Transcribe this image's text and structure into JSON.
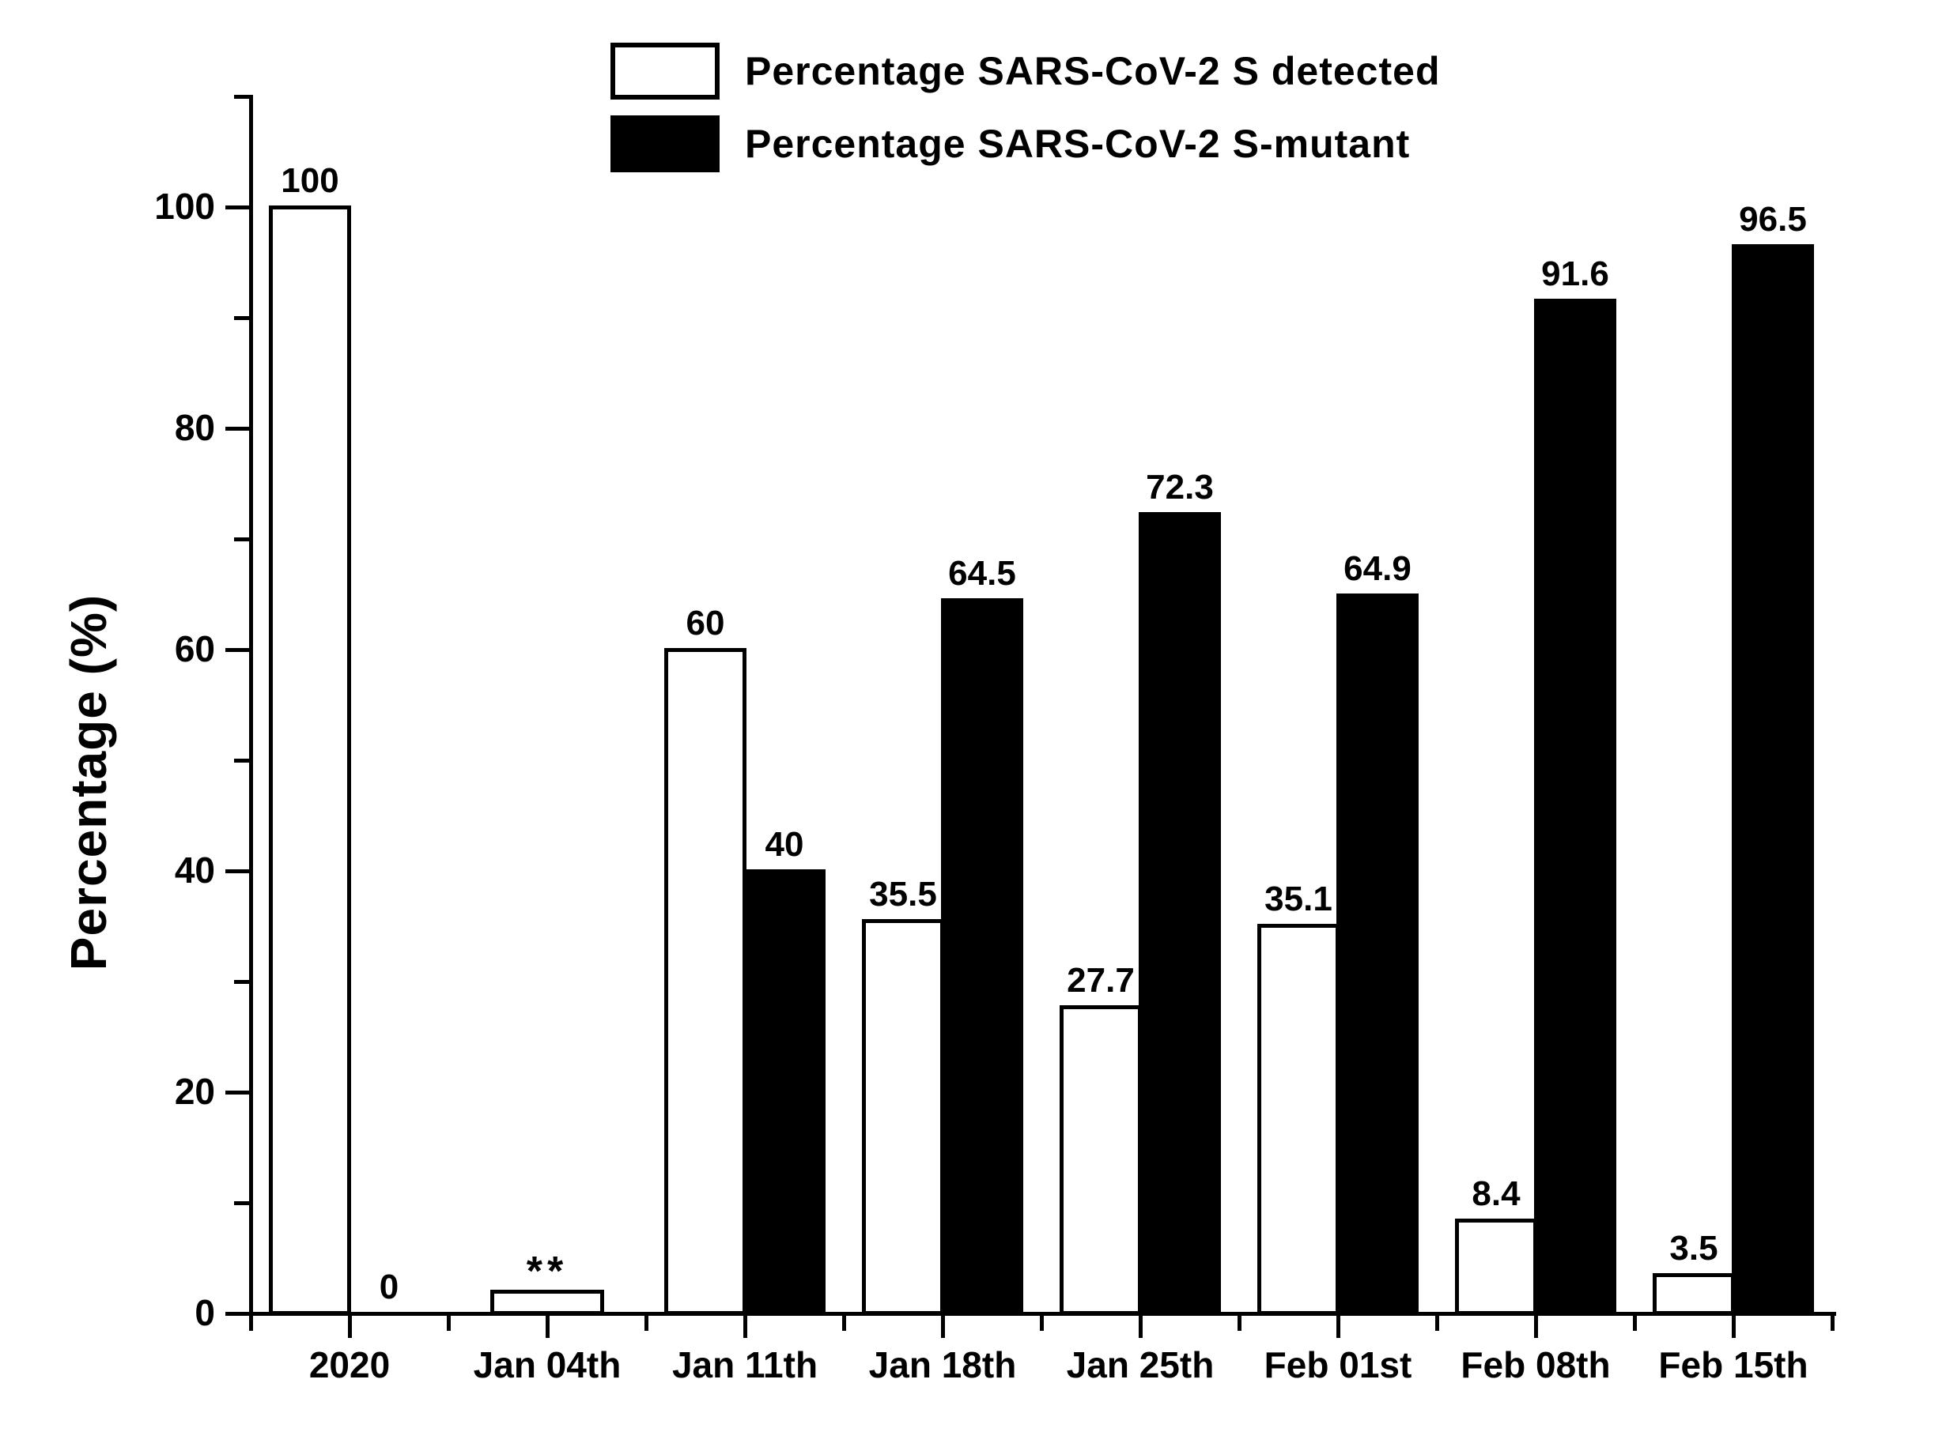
{
  "colors": {
    "foreground": "#000000",
    "background": "#ffffff"
  },
  "legend": {
    "items": [
      {
        "label": "Percentage SARS-CoV-2 S detected",
        "swatch": "white"
      },
      {
        "label": "Percentage SARS-CoV-2 S-mutant",
        "swatch": "black"
      }
    ]
  },
  "chart_data": {
    "type": "bar",
    "title": "",
    "xlabel": "",
    "ylabel": "Percentage (%)",
    "ylim": [
      0,
      110
    ],
    "yticks_major": [
      0,
      20,
      40,
      60,
      80,
      100
    ],
    "yticks_minor": [
      10,
      30,
      50,
      70,
      90,
      110
    ],
    "grid": false,
    "legend_position": "top-center-inside",
    "categories": [
      "2020",
      "Jan 04th",
      "Jan 11th",
      "Jan 18th",
      "Jan 25th",
      "Feb 01st",
      "Feb 08th",
      "Feb 15th"
    ],
    "series": [
      {
        "name": "Percentage SARS-CoV-2 S detected",
        "fill": "#ffffff",
        "border": "#000000",
        "values": [
          100,
          2,
          60,
          35.5,
          27.7,
          35.1,
          8.4,
          3.5
        ],
        "data_labels": [
          "100",
          "**",
          "60",
          "35.5",
          "27.7",
          "35.1",
          "8.4",
          "3.5"
        ]
      },
      {
        "name": "Percentage SARS-CoV-2 S-mutant",
        "fill": "#000000",
        "border": "#000000",
        "values": [
          0,
          null,
          40,
          64.5,
          72.3,
          64.9,
          91.6,
          96.5
        ],
        "data_labels": [
          "0",
          null,
          "40",
          "64.5",
          "72.3",
          "64.9",
          "91.6",
          "96.5"
        ]
      }
    ],
    "annotations": [
      {
        "text": "**",
        "category": "Jan 04th",
        "position": "above-bar"
      }
    ]
  }
}
